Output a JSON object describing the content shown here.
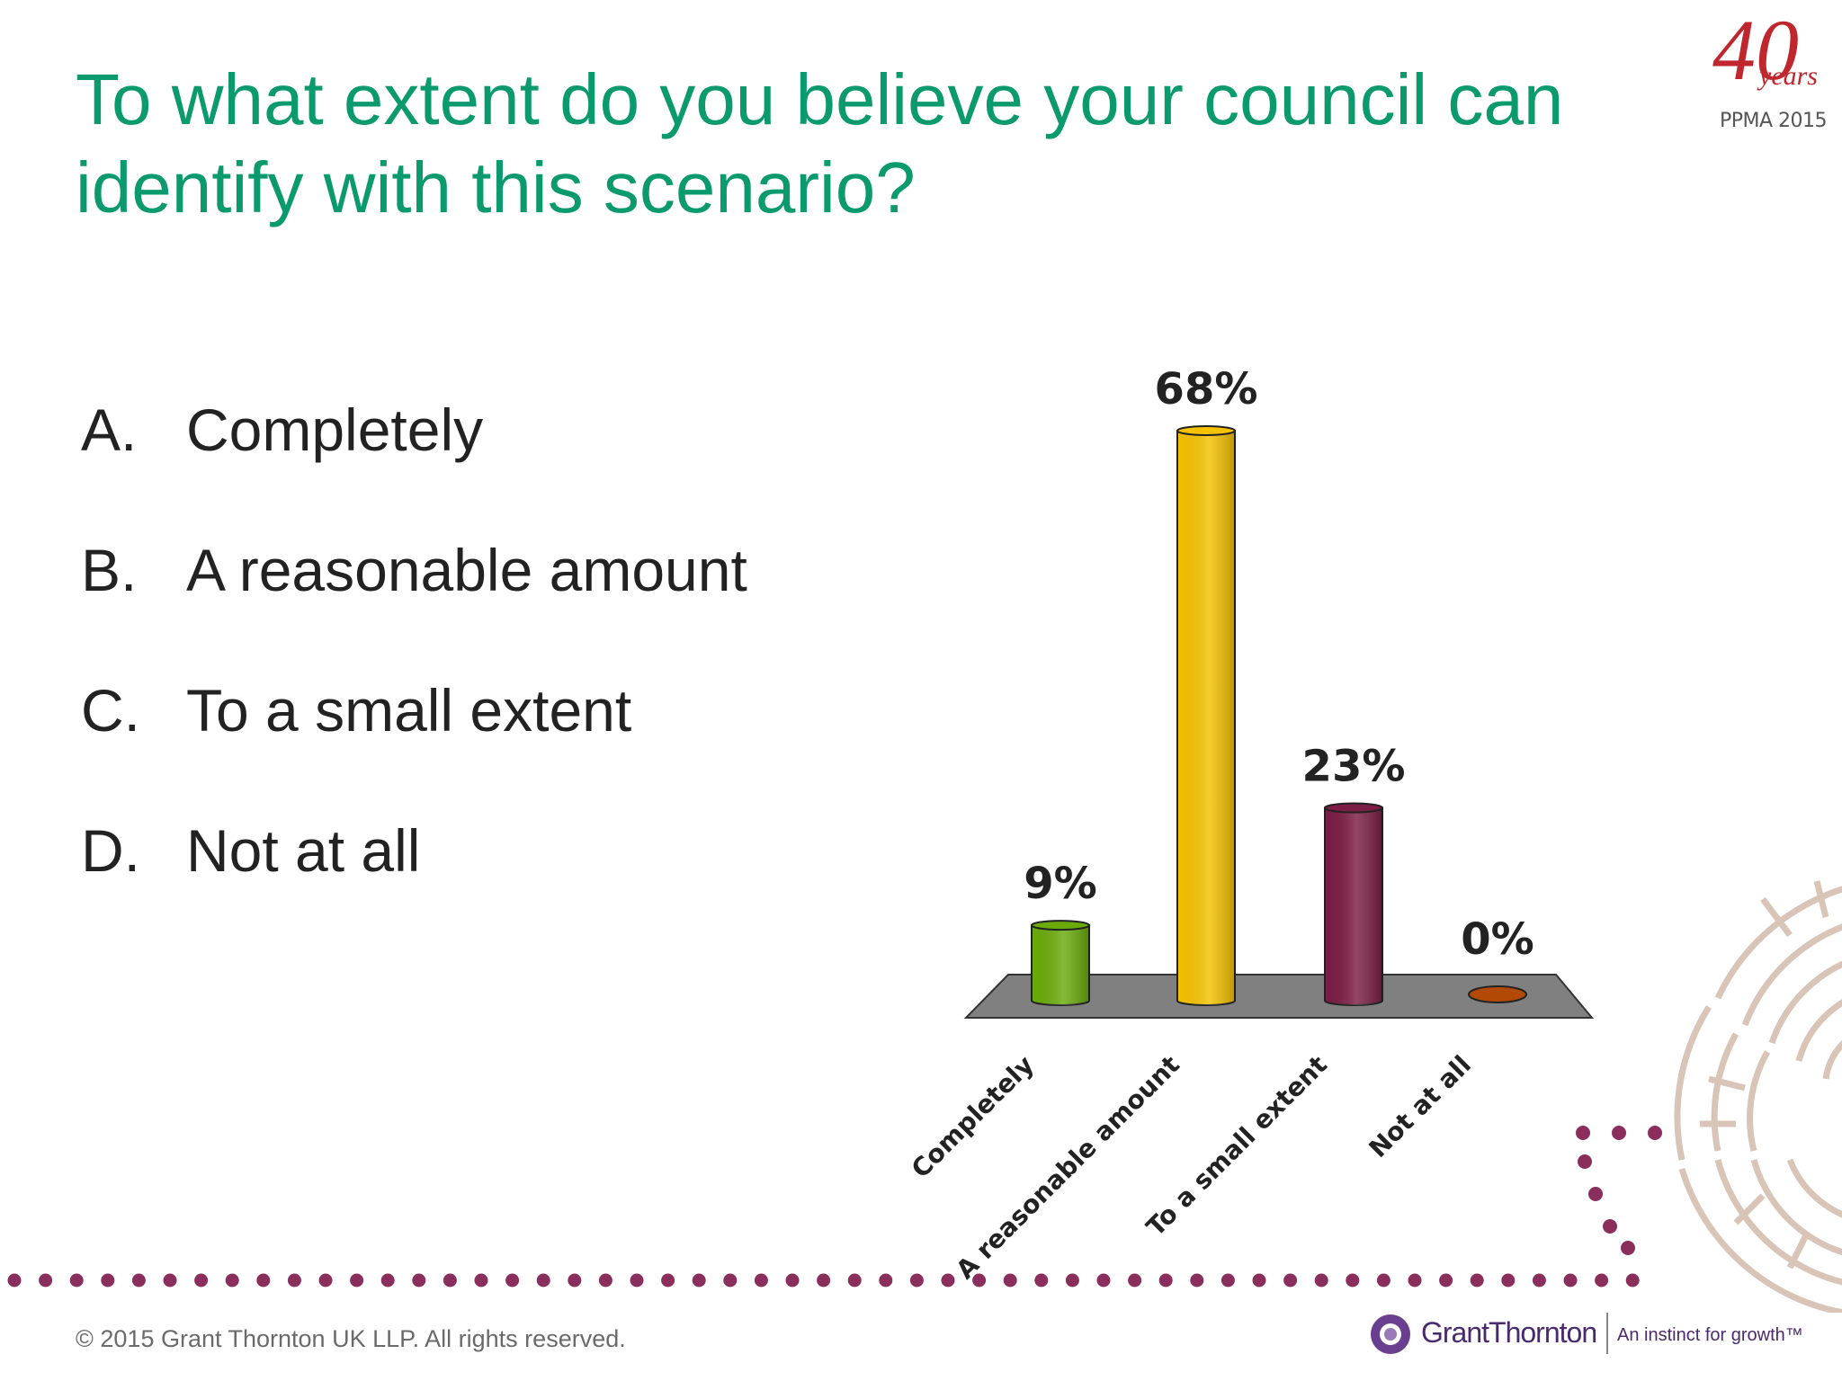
{
  "slide": {
    "title": "To what extent do you believe your council can identify with this scenario?",
    "options": [
      {
        "letter": "A.",
        "text": "Completely"
      },
      {
        "letter": "B.",
        "text": "A reasonable amount"
      },
      {
        "letter": "C.",
        "text": "To a small extent"
      },
      {
        "letter": "D.",
        "text": "Not at all"
      }
    ]
  },
  "logo": {
    "number": "40",
    "word": "years",
    "caption": "PPMA 2015"
  },
  "footer": {
    "copyright": "© 2015 Grant Thornton UK LLP. All rights reserved.",
    "brand": "GrantThornton",
    "tagline": "An instinct for growth™"
  },
  "chart_data": {
    "type": "bar",
    "categories": [
      "Completely",
      "A reasonable amount",
      "To a small extent",
      "Not at all"
    ],
    "values": [
      9,
      68,
      23,
      0
    ],
    "value_labels": [
      "9%",
      "68%",
      "23%",
      "0%"
    ],
    "colors": [
      "#6aab0a",
      "#f5c200",
      "#7b1d44",
      "#b24a06"
    ],
    "unit": "%",
    "ylim": [
      0,
      68
    ],
    "grid": false,
    "legend": false,
    "style": "3d-cylinder"
  },
  "colors": {
    "title": "#0a9a6e",
    "accent_dots": "#8a2e5c",
    "floor": "#808080"
  }
}
